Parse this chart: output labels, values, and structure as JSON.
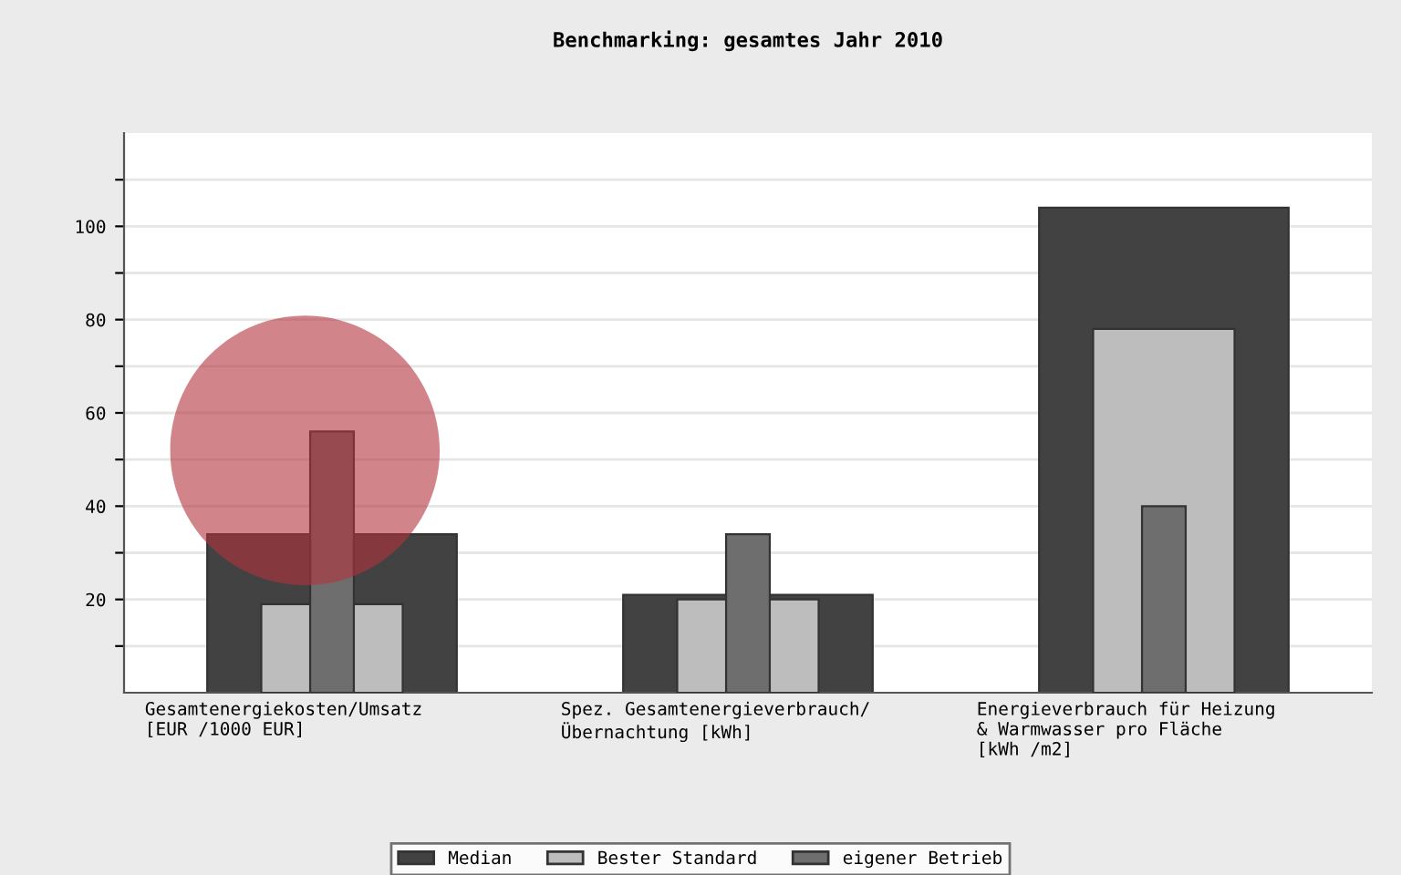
{
  "chart_data": {
    "type": "bar",
    "title": "Benchmarking: gesamtes Jahr 2010",
    "categories": [
      "Gesamtenergiekosten/Umsatz\n[EUR /1000 EUR]",
      "Spez. Gesamtenergieverbrauch/\nÜbernachtung [kWh]",
      "Energieverbrauch für Heizung\n& Warmwasser pro Fläche\n[kWh /m2]"
    ],
    "series": [
      {
        "name": "Median",
        "color": "#424242",
        "values": [
          34,
          21,
          104
        ]
      },
      {
        "name": "Bester Standard",
        "color": "#bdbdbd",
        "values": [
          19,
          20,
          78
        ]
      },
      {
        "name": "eigener Betrieb",
        "color": "#6e6e6e",
        "values": [
          56,
          34,
          40
        ]
      }
    ],
    "ylim": [
      0,
      120
    ],
    "yticks": [
      {
        "value": 10,
        "label": null
      },
      20,
      {
        "value": 30,
        "label": null
      },
      40,
      {
        "value": 50,
        "label": null
      },
      60,
      {
        "value": 70,
        "label": null
      },
      80,
      {
        "value": 90,
        "label": null
      },
      100,
      {
        "value": 110,
        "label": null
      }
    ],
    "grid": "y",
    "legend": "bottom"
  }
}
